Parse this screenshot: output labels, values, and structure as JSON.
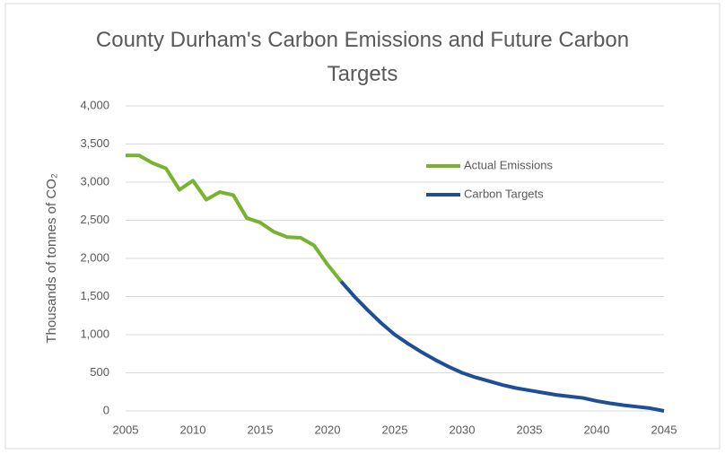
{
  "chart_data": {
    "type": "line",
    "title": "County Durham's Carbon Emissions and Future Carbon Targets",
    "y_label": "Thousands of tonnes of CO₂",
    "x": [
      2005,
      2006,
      2007,
      2008,
      2009,
      2010,
      2011,
      2012,
      2013,
      2014,
      2015,
      2016,
      2017,
      2018,
      2019,
      2020,
      2021,
      2022,
      2023,
      2024,
      2025,
      2026,
      2027,
      2028,
      2029,
      2030,
      2031,
      2032,
      2033,
      2034,
      2035,
      2036,
      2037,
      2038,
      2039,
      2040,
      2041,
      2042,
      2043,
      2044,
      2045
    ],
    "series": [
      {
        "name": "Actual Emissions",
        "color": "#77b32f",
        "values": [
          3350,
          3350,
          3250,
          3180,
          2900,
          3020,
          2770,
          2870,
          2830,
          2530,
          2470,
          2350,
          2280,
          2270,
          2170,
          1920,
          1700,
          null,
          null,
          null,
          null,
          null,
          null,
          null,
          null,
          null,
          null,
          null,
          null,
          null,
          null,
          null,
          null,
          null,
          null,
          null,
          null,
          null,
          null,
          null,
          null
        ]
      },
      {
        "name": "Carbon Targets",
        "color": "#1f4e99",
        "values": [
          null,
          null,
          null,
          null,
          null,
          null,
          null,
          null,
          null,
          null,
          null,
          null,
          null,
          null,
          null,
          null,
          1700,
          1500,
          1320,
          1150,
          1000,
          880,
          770,
          670,
          580,
          500,
          440,
          390,
          340,
          300,
          270,
          240,
          210,
          190,
          170,
          130,
          100,
          75,
          55,
          35,
          0
        ]
      }
    ],
    "xlim": [
      2005,
      2045
    ],
    "xticks": [
      2005,
      2010,
      2015,
      2020,
      2025,
      2030,
      2035,
      2040,
      2045
    ],
    "ylim": [
      0,
      4000
    ],
    "yticks": [
      0,
      500,
      {
        "value": 1000,
        "label": "1,000"
      },
      {
        "value": 1500,
        "label": "1,500"
      },
      {
        "value": 2000,
        "label": "2,000"
      },
      {
        "value": 2500,
        "label": "2,500"
      },
      {
        "value": 3000,
        "label": "3,000"
      },
      {
        "value": 3500,
        "label": "3,500"
      },
      {
        "value": 4000,
        "label": "4,000"
      }
    ],
    "grid": true,
    "legend": "upper right"
  }
}
